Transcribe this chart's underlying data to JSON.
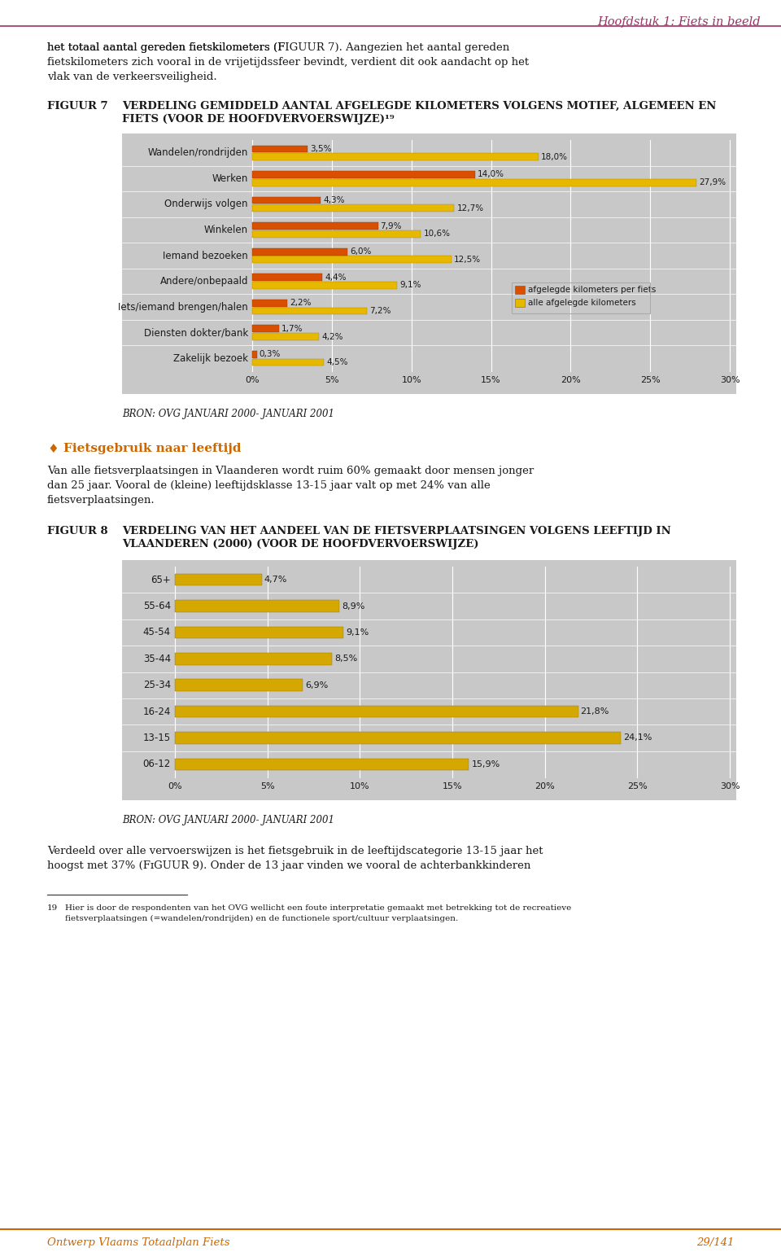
{
  "page_bg": "#ffffff",
  "header_text": "Hoofdstuk 1: Fiets in beeld",
  "header_color": "#993366",
  "intro_text": "het totaal aantal gereden fietskilometers (FɪGUUR 7). Aangezien het aantal gereden fietskilometers zich vooral in de vrijetijdssfeer bevindt, verdient dit ook aandacht op het vlak van de verkeersveiligheid.",
  "fig7_label": "FIGUUR 7",
  "fig7_title1": "VERDELING GEMIDDELD AANTAL AFGELEGDE KILOMETERS VOLGENS MOTIEF, ALGEMEEN EN",
  "fig7_title2": "FIETS (VOOR DE HOOFDVERVOERSWIJZE)¹⁹",
  "fig7_categories": [
    "Wandelen/rondrijden",
    "Werken",
    "Onderwijs volgen",
    "Winkelen",
    "Iemand bezoeken",
    "Andere/onbepaald",
    "Iets/iemand brengen/halen",
    "Diensten dokter/bank",
    "Zakelijk bezoek"
  ],
  "fig7_fiets": [
    3.5,
    14.0,
    4.3,
    7.9,
    6.0,
    4.4,
    2.2,
    1.7,
    0.3
  ],
  "fig7_algemeen": [
    18.0,
    27.9,
    12.7,
    10.6,
    12.5,
    9.1,
    7.2,
    4.2,
    4.5
  ],
  "fig7_fiets_color": "#d94f00",
  "fig7_algemeen_color": "#e6b800",
  "fig7_bg": "#c8c8c8",
  "fig7_xticks": [
    0,
    5,
    10,
    15,
    20,
    25,
    30
  ],
  "fig7_legend_fiets": "afgelegde kilometers per fiets",
  "fig7_legend_algemeen": "alle afgelegde kilometers",
  "fig7_source": "BRON: OVG JANUARI 2000- JANUARI 2001",
  "section_bullet": "♦",
  "section_title": "Fietsgebruik naar leeftijd",
  "section_title_color": "#cc6600",
  "body_text1": "Van alle fietsverplaatsingen in Vlaanderen wordt ruim 60% gemaakt door mensen jonger",
  "body_text2": "dan 25 jaar. Vooral de (kleine) leeftijdsklasse 13-15 jaar valt op met 24% van alle",
  "body_text3": "fietsverplaatsingen.",
  "fig8_label": "FIGUUR 8",
  "fig8_title1": "VERDELING VAN HET AANDEEL VAN DE FIETSVERPLAATSINGEN VOLGENS LEEFTIJD IN",
  "fig8_title2": "VLAANDEREN (2000) (VOOR DE HOOFDVERVOERSWIJZE)",
  "fig8_categories": [
    "65+",
    "55-64",
    "45-54",
    "35-44",
    "25-34",
    "16-24",
    "13-15",
    "06-12"
  ],
  "fig8_values": [
    4.7,
    8.9,
    9.1,
    8.5,
    6.9,
    21.8,
    24.1,
    15.9
  ],
  "fig8_color": "#d4a800",
  "fig8_bg": "#c8c8c8",
  "fig8_xticks": [
    0,
    5,
    10,
    15,
    20,
    25,
    30
  ],
  "fig8_source": "BRON: OVG JANUARI 2000- JANUARI 2001",
  "end_text1": "Verdeeld over alle vervoerswijzen is het fietsgebruik in de leeftijdscategorie 13-15 jaar het",
  "end_text2": "hoogst met 37% (FɪGUUR 9). Onder de 13 jaar vinden we vooral de achterbankkinderen",
  "footnote_line": true,
  "footnote_num": "19",
  "footnote_text1": "Hier is door de respondenten van het OVG wellicht een foute interpretatie gemaakt met betrekking tot de recreatieve",
  "footnote_text2": "fietsverplaatsingen (=wandelen/rondrijden) en de functionele sport/cultuur verplaatsingen.",
  "footer_left": "Ontwerp Vlaams Totaalplan Fiets",
  "footer_right": "29/141",
  "footer_color": "#cc6600"
}
